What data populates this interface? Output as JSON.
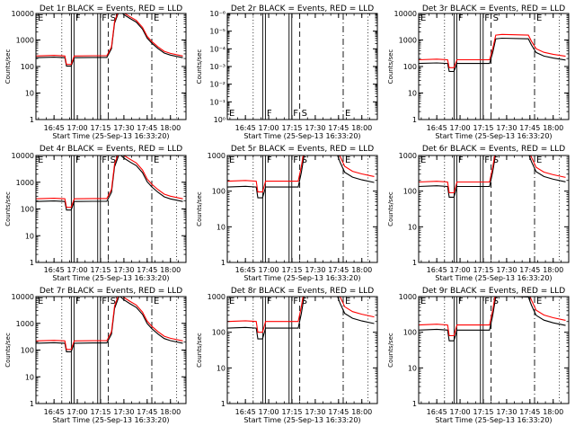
{
  "figure": {
    "background": "#ffffff",
    "axis_color": "#000000",
    "events_color": "#000000",
    "lld_color": "#ff0000"
  },
  "chart_data": [
    {
      "type": "line",
      "title": "Det 1r BLACK = Events, RED = LLD",
      "xlabel": "Start Time (25-Sep-13 16:33:20)",
      "ylabel": "Counts/sec",
      "xlim": [
        "16:33:20",
        "18:10"
      ],
      "xticks": [
        "16:45",
        "17:00",
        "17:15",
        "17:30",
        "17:45",
        "18:00"
      ],
      "ylim": [
        1,
        10000
      ],
      "yscale": "log",
      "yticks": [
        "1",
        "10",
        "100",
        "1000",
        "10000"
      ],
      "markers": [
        {
          "label": "E",
          "time": "16:33:20",
          "style": "dotted"
        },
        {
          "label": "F",
          "time": "16:57",
          "style": "double"
        },
        {
          "label": "F",
          "time": "17:14",
          "style": "double"
        },
        {
          "label": "S",
          "time": "17:20",
          "style": "dashed"
        },
        {
          "label": "E",
          "time": "17:48",
          "style": "dashdot"
        }
      ],
      "extra_lines": [
        {
          "time": "16:50",
          "style": "dotted"
        },
        {
          "time": "18:04",
          "style": "dotted"
        }
      ],
      "series": [
        {
          "name": "Events",
          "color": "#000000",
          "profile": "A",
          "base": 215
        },
        {
          "name": "LLD",
          "color": "#ff0000",
          "profile": "A",
          "base": 250
        }
      ]
    },
    {
      "type": "line",
      "title": "Det 2r BLACK = Events, RED = LLD",
      "xlabel": "Start Time (25-Sep-13 16:33:20)",
      "ylabel": "Counts/sec",
      "xlim": [
        "16:33:20",
        "18:10"
      ],
      "xticks": [
        "16:45",
        "17:00",
        "17:15",
        "17:30",
        "17:45",
        "18:00"
      ],
      "ylim": [
        1,
        1e-06
      ],
      "yscale": "log",
      "yticks": [
        "10⁰",
        "10⁻¹",
        "10⁻²",
        "10⁻³",
        "10⁻⁴",
        "10⁻⁵",
        "10⁻⁶"
      ],
      "markers": [
        {
          "label": "E",
          "time": "16:33:20",
          "style": "dotted"
        },
        {
          "label": "F",
          "time": "16:57",
          "style": "double"
        },
        {
          "label": "F",
          "time": "17:14",
          "style": "double"
        },
        {
          "label": "S",
          "time": "17:20",
          "style": "dashed"
        },
        {
          "label": "E",
          "time": "17:48",
          "style": "dashdot"
        }
      ],
      "extra_lines": [
        {
          "time": "16:50",
          "style": "dotted"
        },
        {
          "time": "18:04",
          "style": "dotted"
        }
      ],
      "series": []
    },
    {
      "type": "line",
      "title": "Det 3r BLACK = Events, RED = LLD",
      "xlabel": "Start Time (25-Sep-13 16:33:20)",
      "ylabel": "Counts/sec",
      "xlim": [
        "16:33:20",
        "18:10"
      ],
      "xticks": [
        "16:45",
        "17:00",
        "17:15",
        "17:30",
        "17:45",
        "18:00"
      ],
      "ylim": [
        1,
        10000
      ],
      "yscale": "log",
      "yticks": [
        "1",
        "10",
        "100",
        "1000",
        "10000"
      ],
      "markers": [
        {
          "label": "E",
          "time": "16:33:20",
          "style": "dotted"
        },
        {
          "label": "F",
          "time": "16:57",
          "style": "double"
        },
        {
          "label": "F",
          "time": "17:14",
          "style": "double"
        },
        {
          "label": "S",
          "time": "17:20",
          "style": "dashed"
        },
        {
          "label": "E",
          "time": "17:48",
          "style": "dashdot"
        }
      ],
      "extra_lines": [
        {
          "time": "16:50",
          "style": "dotted"
        },
        {
          "time": "18:04",
          "style": "dotted"
        }
      ],
      "series": [
        {
          "name": "Events",
          "color": "#000000",
          "profile": "B",
          "base": 130
        },
        {
          "name": "LLD",
          "color": "#ff0000",
          "profile": "B",
          "base": 180
        }
      ]
    },
    {
      "type": "line",
      "title": "Det 4r BLACK = Events, RED = LLD",
      "xlabel": "Start Time (25-Sep-13 16:33:20)",
      "ylabel": "Counts/sec",
      "xlim": [
        "16:33:20",
        "18:10"
      ],
      "xticks": [
        "16:45",
        "17:00",
        "17:15",
        "17:30",
        "17:45",
        "18:00"
      ],
      "ylim": [
        1,
        10000
      ],
      "yscale": "log",
      "yticks": [
        "1",
        "10",
        "100",
        "1000",
        "10000"
      ],
      "markers": [
        {
          "label": "E",
          "time": "16:33:20",
          "style": "dotted"
        },
        {
          "label": "F",
          "time": "16:57",
          "style": "double"
        },
        {
          "label": "F",
          "time": "17:14",
          "style": "double"
        },
        {
          "label": "S",
          "time": "17:20",
          "style": "dashed"
        },
        {
          "label": "E",
          "time": "17:48",
          "style": "dashdot"
        }
      ],
      "extra_lines": [
        {
          "time": "16:50",
          "style": "dotted"
        },
        {
          "time": "18:04",
          "style": "dotted"
        }
      ],
      "series": [
        {
          "name": "Events",
          "color": "#000000",
          "profile": "A",
          "base": 190
        },
        {
          "name": "LLD",
          "color": "#ff0000",
          "profile": "A",
          "base": 240
        }
      ]
    },
    {
      "type": "line",
      "title": "Det 5r BLACK = Events, RED = LLD",
      "xlabel": "Start Time (25-Sep-13 16:33:20)",
      "ylabel": "Counts/sec",
      "xlim": [
        "16:33:20",
        "18:10"
      ],
      "xticks": [
        "16:45",
        "17:00",
        "17:15",
        "17:30",
        "17:45",
        "18:00"
      ],
      "ylim": [
        1,
        1000
      ],
      "yscale": "log",
      "yticks": [
        "1",
        "10",
        "100",
        "1000"
      ],
      "markers": [
        {
          "label": "E",
          "time": "16:33:20",
          "style": "dotted"
        },
        {
          "label": "F",
          "time": "16:57",
          "style": "double"
        },
        {
          "label": "F",
          "time": "17:14",
          "style": "double"
        },
        {
          "label": "S",
          "time": "17:20",
          "style": "dashed"
        },
        {
          "label": "E",
          "time": "17:48",
          "style": "dashdot"
        }
      ],
      "extra_lines": [
        {
          "time": "16:50",
          "style": "dotted"
        },
        {
          "time": "18:04",
          "style": "dotted"
        }
      ],
      "series": [
        {
          "name": "Events",
          "color": "#000000",
          "profile": "B",
          "base": 130
        },
        {
          "name": "LLD",
          "color": "#ff0000",
          "profile": "B",
          "base": 190
        }
      ]
    },
    {
      "type": "line",
      "title": "Det 6r BLACK = Events, RED = LLD",
      "xlabel": "Start Time (25-Sep-13 16:33:20)",
      "ylabel": "Counts/sec",
      "xlim": [
        "16:33:20",
        "18:10"
      ],
      "xticks": [
        "16:45",
        "17:00",
        "17:15",
        "17:30",
        "17:45",
        "18:00"
      ],
      "ylim": [
        1,
        1000
      ],
      "yscale": "log",
      "yticks": [
        "1",
        "10",
        "100",
        "1000"
      ],
      "markers": [
        {
          "label": "E",
          "time": "16:33:20",
          "style": "dotted"
        },
        {
          "label": "F",
          "time": "16:57",
          "style": "double"
        },
        {
          "label": "F",
          "time": "17:14",
          "style": "double"
        },
        {
          "label": "S",
          "time": "17:20",
          "style": "dashed"
        },
        {
          "label": "E",
          "time": "17:48",
          "style": "dashdot"
        }
      ],
      "extra_lines": [
        {
          "time": "16:50",
          "style": "dotted"
        },
        {
          "time": "18:04",
          "style": "dotted"
        }
      ],
      "series": [
        {
          "name": "Events",
          "color": "#000000",
          "profile": "B",
          "base": 135
        },
        {
          "name": "LLD",
          "color": "#ff0000",
          "profile": "B",
          "base": 180
        }
      ]
    },
    {
      "type": "line",
      "title": "Det 7r BLACK = Events, RED = LLD",
      "xlabel": "Start Time (25-Sep-13 16:33:20)",
      "ylabel": "Counts/sec",
      "xlim": [
        "16:33:20",
        "18:10"
      ],
      "xticks": [
        "16:45",
        "17:00",
        "17:15",
        "17:30",
        "17:45",
        "18:00"
      ],
      "ylim": [
        1,
        10000
      ],
      "yscale": "log",
      "yticks": [
        "1",
        "10",
        "100",
        "1000",
        "10000"
      ],
      "markers": [
        {
          "label": "E",
          "time": "16:33:20",
          "style": "dotted"
        },
        {
          "label": "F",
          "time": "16:57",
          "style": "double"
        },
        {
          "label": "F",
          "time": "17:14",
          "style": "double"
        },
        {
          "label": "S",
          "time": "17:20",
          "style": "dashed"
        },
        {
          "label": "E",
          "time": "17:48",
          "style": "dashdot"
        }
      ],
      "extra_lines": [
        {
          "time": "16:50",
          "style": "dotted"
        },
        {
          "time": "18:04",
          "style": "dotted"
        }
      ],
      "series": [
        {
          "name": "Events",
          "color": "#000000",
          "profile": "A",
          "base": 180
        },
        {
          "name": "LLD",
          "color": "#ff0000",
          "profile": "A",
          "base": 220
        }
      ]
    },
    {
      "type": "line",
      "title": "Det 8r BLACK = Events, RED = LLD",
      "xlabel": "Start Time (25-Sep-13 16:33:20)",
      "ylabel": "Counts/sec",
      "xlim": [
        "16:33:20",
        "18:10"
      ],
      "xticks": [
        "16:45",
        "17:00",
        "17:15",
        "17:30",
        "17:45",
        "18:00"
      ],
      "ylim": [
        1,
        1000
      ],
      "yscale": "log",
      "yticks": [
        "1",
        "10",
        "100",
        "1000"
      ],
      "markers": [
        {
          "label": "E",
          "time": "16:33:20",
          "style": "dotted"
        },
        {
          "label": "F",
          "time": "16:57",
          "style": "double"
        },
        {
          "label": "F",
          "time": "17:14",
          "style": "double"
        },
        {
          "label": "S",
          "time": "17:20",
          "style": "dashed"
        },
        {
          "label": "E",
          "time": "17:48",
          "style": "dashdot"
        }
      ],
      "extra_lines": [
        {
          "time": "16:50",
          "style": "dotted"
        },
        {
          "time": "18:04",
          "style": "dotted"
        }
      ],
      "series": [
        {
          "name": "Events",
          "color": "#000000",
          "profile": "B",
          "base": 130
        },
        {
          "name": "LLD",
          "color": "#ff0000",
          "profile": "B",
          "base": 200
        }
      ]
    },
    {
      "type": "line",
      "title": "Det 9r BLACK = Events, RED = LLD",
      "xlabel": "Start Time (25-Sep-13 16:33:20)",
      "ylabel": "Counts/sec",
      "xlim": [
        "16:33:20",
        "18:10"
      ],
      "xticks": [
        "16:45",
        "17:00",
        "17:15",
        "17:30",
        "17:45",
        "18:00"
      ],
      "ylim": [
        1,
        1000
      ],
      "yscale": "log",
      "yticks": [
        "1",
        "10",
        "100",
        "1000"
      ],
      "markers": [
        {
          "label": "E",
          "time": "16:33:20",
          "style": "dotted"
        },
        {
          "label": "F",
          "time": "16:57",
          "style": "double"
        },
        {
          "label": "F",
          "time": "17:14",
          "style": "double"
        },
        {
          "label": "S",
          "time": "17:20",
          "style": "dashed"
        },
        {
          "label": "E",
          "time": "17:48",
          "style": "dashdot"
        }
      ],
      "extra_lines": [
        {
          "time": "16:50",
          "style": "dotted"
        },
        {
          "time": "18:04",
          "style": "dotted"
        }
      ],
      "series": [
        {
          "name": "Events",
          "color": "#000000",
          "profile": "B",
          "base": 115
        },
        {
          "name": "LLD",
          "color": "#ff0000",
          "profile": "B",
          "base": 160
        }
      ]
    }
  ]
}
